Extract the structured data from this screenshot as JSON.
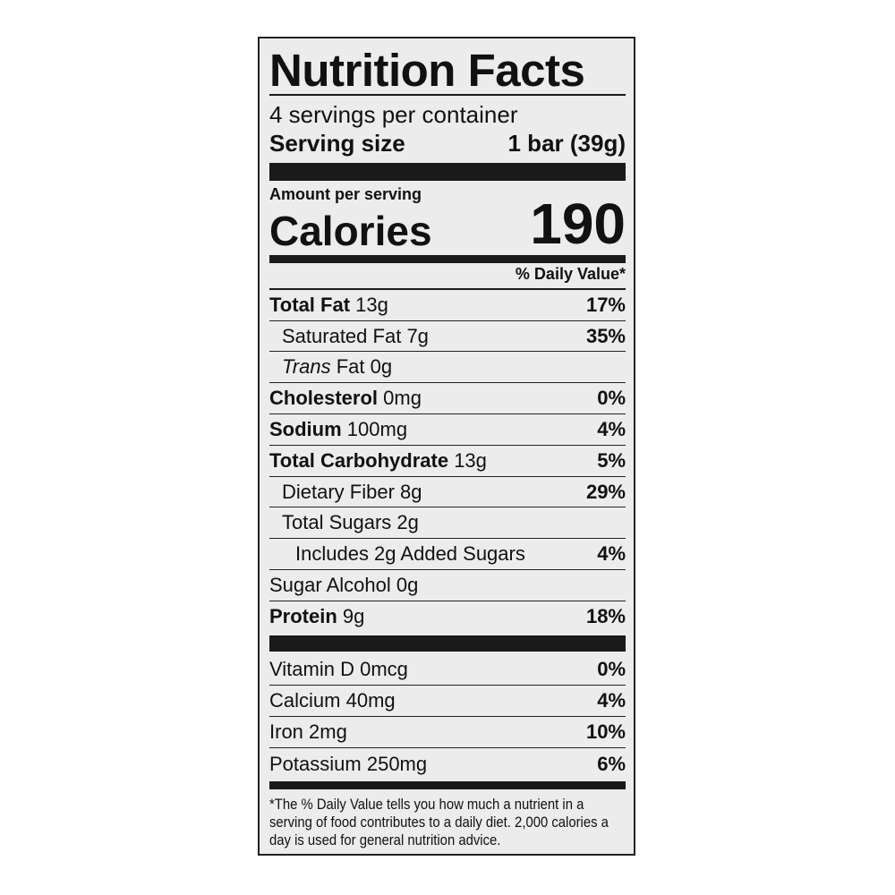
{
  "title": "Nutrition Facts",
  "servings_per_container": "4 servings per container",
  "serving_size": {
    "label": "Serving size",
    "value": "1 bar (39g)"
  },
  "amount_per_serving": "Amount per serving",
  "calories": {
    "label": "Calories",
    "value": "190"
  },
  "daily_value_header": "% Daily Value*",
  "nutrients": [
    {
      "name": "Total Fat",
      "amount": "13g",
      "dv": "17%"
    },
    {
      "name": "Saturated Fat",
      "amount": "7g",
      "dv": "35%"
    },
    {
      "name": "Trans",
      "name_suffix": "Fat",
      "amount": "0g",
      "dv": ""
    },
    {
      "name": "Cholesterol",
      "amount": "0mg",
      "dv": "0%"
    },
    {
      "name": "Sodium",
      "amount": "100mg",
      "dv": "4%"
    },
    {
      "name": "Total Carbohydrate",
      "amount": "13g",
      "dv": "5%"
    },
    {
      "name": "Dietary Fiber",
      "amount": "8g",
      "dv": "29%"
    },
    {
      "name": "Total Sugars",
      "amount": "2g",
      "dv": ""
    },
    {
      "name": "Includes 2g Added Sugars",
      "amount": "",
      "dv": "4%"
    },
    {
      "name": "Sugar Alcohol",
      "amount": "0g",
      "dv": ""
    },
    {
      "name": "Protein",
      "amount": "9g",
      "dv": "18%"
    }
  ],
  "vitamins": [
    {
      "name": "Vitamin D",
      "amount": "0mcg",
      "dv": "0%"
    },
    {
      "name": "Calcium",
      "amount": "40mg",
      "dv": "4%"
    },
    {
      "name": "Iron",
      "amount": "2mg",
      "dv": "10%"
    },
    {
      "name": "Potassium",
      "amount": "250mg",
      "dv": "6%"
    }
  ],
  "footnote": "*The % Daily Value tells you how much a nutrient in a serving of food contributes to a daily diet. 2,000 calories a day is used for general nutrition advice."
}
